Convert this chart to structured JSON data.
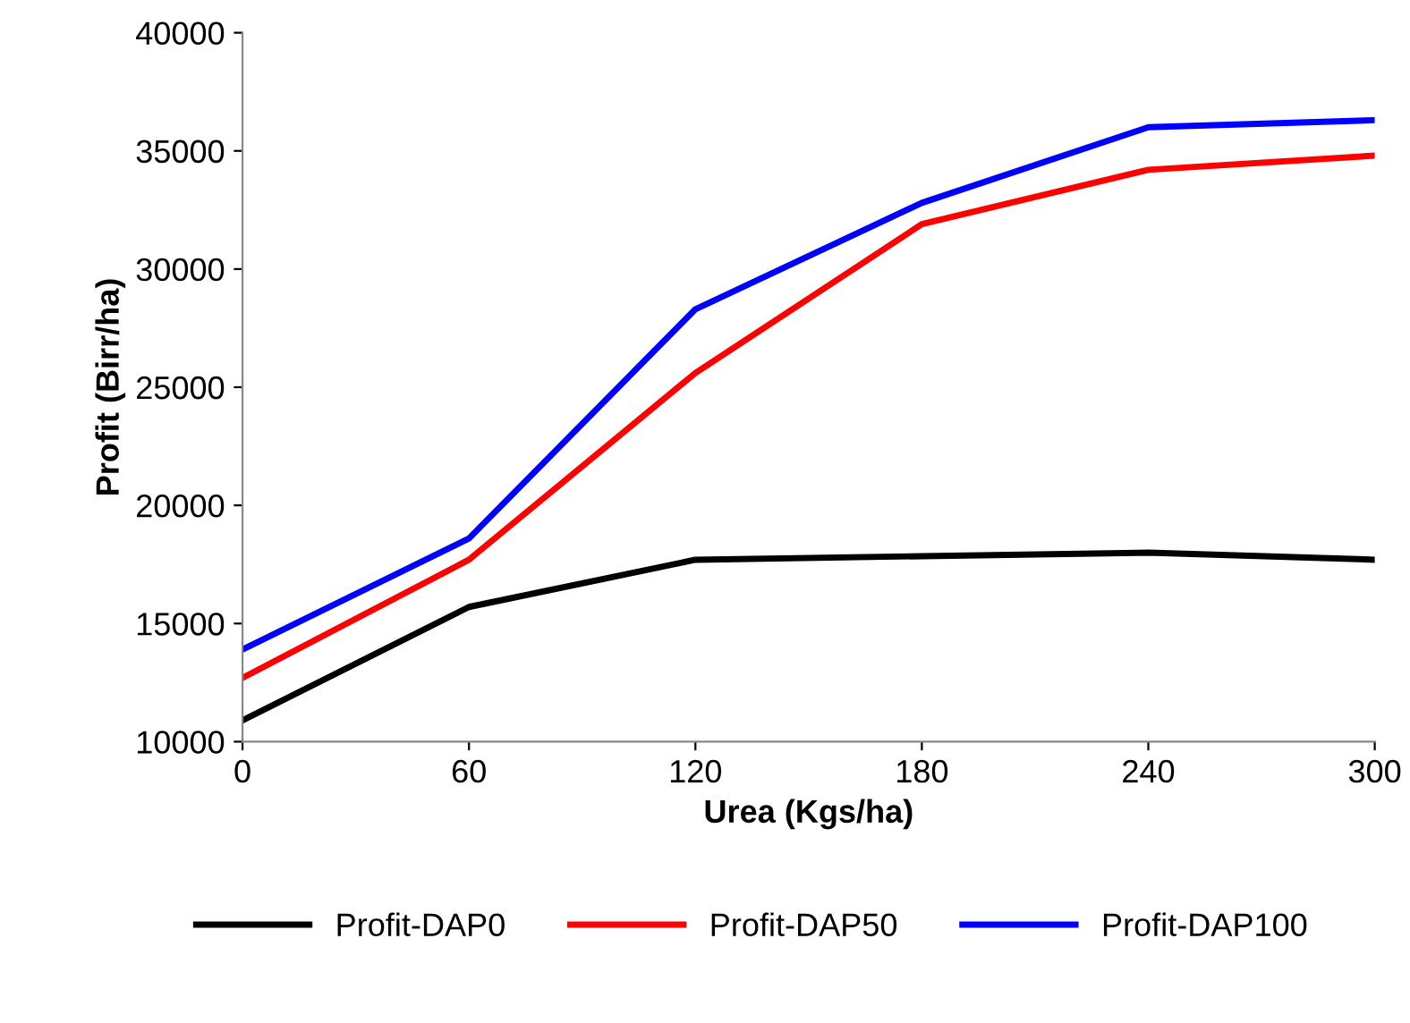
{
  "chart_data": {
    "type": "line",
    "xlabel": "Urea (Kgs/ha)",
    "ylabel": "Profit (Birr/ha)",
    "x": [
      0,
      60,
      120,
      180,
      240,
      300
    ],
    "series": [
      {
        "name": "Profit-DAP0",
        "color": "#000000",
        "values": [
          10900,
          15700,
          17700,
          17850,
          18000,
          17700
        ]
      },
      {
        "name": "Profit-DAP50",
        "color": "#ff0000",
        "values": [
          12700,
          17700,
          25600,
          31900,
          34200,
          34800
        ]
      },
      {
        "name": "Profit-DAP100",
        "color": "#0000ff",
        "values": [
          13900,
          18600,
          28300,
          32800,
          36000,
          36300
        ]
      }
    ],
    "xlim": [
      0,
      300
    ],
    "xticks": [
      0,
      60,
      120,
      180,
      240,
      300
    ],
    "ylim": [
      10000,
      40000
    ],
    "yticks": [
      10000,
      15000,
      20000,
      25000,
      30000,
      35000,
      40000
    ],
    "grid": false,
    "legend": "bottom",
    "marker": "none",
    "line_style": "solid"
  }
}
